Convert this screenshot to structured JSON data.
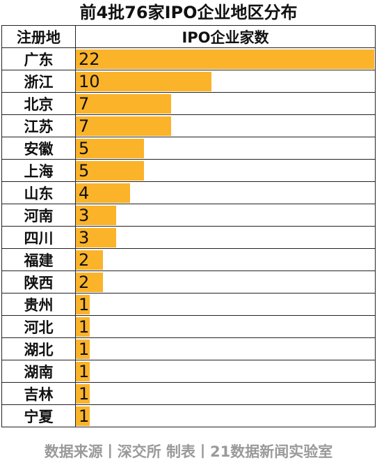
{
  "header": {
    "title": "前4批76家IPO企业地区分布",
    "col_region": "注册地",
    "col_count": "IPO企业家数"
  },
  "footer": {
    "text": "数据来源丨深交所  制表丨21数据新闻实验室"
  },
  "colors": {
    "bar": "#fbb32a",
    "border": "#222222",
    "footer_text": "#9a9a9a"
  },
  "chart_data": {
    "type": "bar",
    "orientation": "horizontal",
    "title": "前4批76家IPO企业地区分布",
    "xlabel": "IPO企业家数",
    "ylabel": "注册地",
    "categories": [
      "广东",
      "浙江",
      "北京",
      "江苏",
      "安徽",
      "上海",
      "山东",
      "河南",
      "四川",
      "福建",
      "陕西",
      "贵州",
      "河北",
      "湖北",
      "湖南",
      "吉林",
      "宁夏"
    ],
    "values": [
      22,
      10,
      7,
      7,
      5,
      5,
      4,
      3,
      3,
      2,
      2,
      1,
      1,
      1,
      1,
      1,
      1
    ],
    "xlim": [
      0,
      22
    ]
  }
}
